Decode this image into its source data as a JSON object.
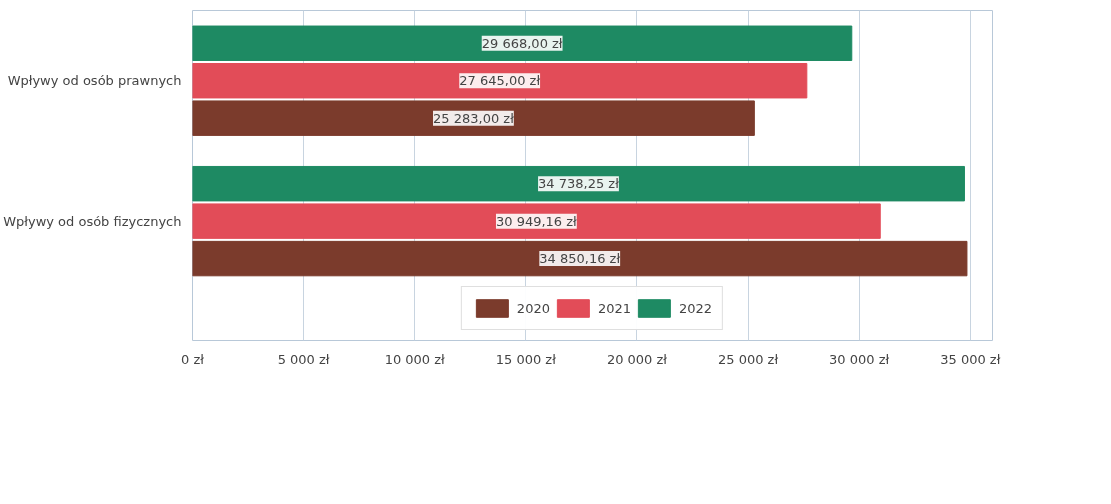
{
  "chart_data": {
    "type": "bar",
    "orientation": "horizontal",
    "categories": [
      "Wpływy od osób prawnych",
      "Wpływy od osób fizycznych"
    ],
    "series": [
      {
        "name": "2020",
        "color": "#7b3b2c",
        "values": [
          25283.0,
          34850.16
        ],
        "value_labels": [
          "25 283,00 zł",
          "34 850,16 zł"
        ]
      },
      {
        "name": "2021",
        "color": "#e24c58",
        "values": [
          27645.0,
          30949.16
        ],
        "value_labels": [
          "27 645,00 zł",
          "30 949,16 zł"
        ]
      },
      {
        "name": "2022",
        "color": "#1e8a63",
        "values": [
          29668.0,
          34738.25
        ],
        "value_labels": [
          "29 668,00 zł",
          "34 738,25 zł"
        ]
      }
    ],
    "xlim": [
      0,
      36000
    ],
    "xticks": [
      {
        "value": 0,
        "label": "0 zł"
      },
      {
        "value": 5000,
        "label": "5 000 zł"
      },
      {
        "value": 10000,
        "label": "10 000 zł"
      },
      {
        "value": 15000,
        "label": "15 000 zł"
      },
      {
        "value": 20000,
        "label": "20 000 zł"
      },
      {
        "value": 25000,
        "label": "25 000 zł"
      },
      {
        "value": 30000,
        "label": "30 000 zł"
      },
      {
        "value": 35000,
        "label": "35 000 zł"
      }
    ],
    "grid": "x",
    "legend": "bottom"
  }
}
